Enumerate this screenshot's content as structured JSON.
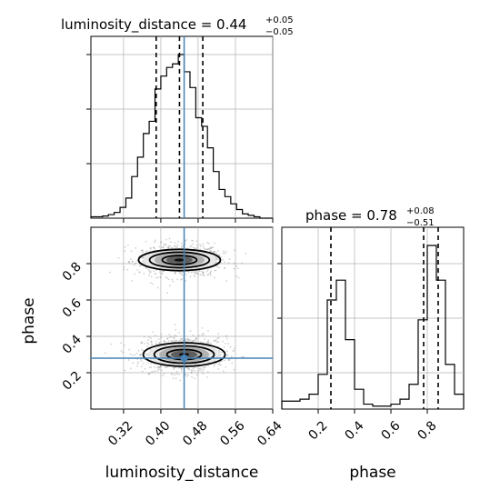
{
  "chart_data": {
    "type": "corner",
    "parameters": [
      "luminosity_distance",
      "phase"
    ],
    "truths": {
      "luminosity_distance": 0.45,
      "phase": 0.28
    },
    "grid": true,
    "panels": [
      {
        "id": "luminosity_distance-hist",
        "type": "histogram",
        "parameter": "luminosity_distance",
        "title_main": "luminosity_distance = 0.44",
        "title_sup": "+0.05",
        "title_sub": "−0.05",
        "xlim": [
          0.25,
          0.64
        ],
        "quantiles": [
          0.39,
          0.44,
          0.49
        ],
        "bins": [
          0.25,
          0.2625,
          0.275,
          0.2875,
          0.3,
          0.3125,
          0.325,
          0.3375,
          0.35,
          0.3625,
          0.375,
          0.3875,
          0.4,
          0.4125,
          0.425,
          0.4375,
          0.45,
          0.4625,
          0.475,
          0.4875,
          0.5,
          0.5125,
          0.525,
          0.5375,
          0.55,
          0.5625,
          0.575,
          0.5875,
          0.6,
          0.6125,
          0.625,
          0.6375,
          0.64
        ],
        "counts": [
          2,
          2,
          3,
          5,
          8,
          15,
          28,
          58,
          85,
          118,
          135,
          180,
          198,
          210,
          215,
          228,
          204,
          182,
          140,
          128,
          98,
          65,
          40,
          30,
          20,
          12,
          6,
          4,
          2,
          0,
          0,
          0
        ]
      },
      {
        "id": "phase-hist",
        "type": "histogram",
        "parameter": "phase",
        "title_main": "phase = 0.78",
        "title_sup": "+0.08",
        "title_sub": "−0.51",
        "xlim": [
          0.0,
          1.0
        ],
        "quantiles": [
          0.27,
          0.78,
          0.86
        ],
        "bins": [
          0.0,
          0.05,
          0.1,
          0.15,
          0.2,
          0.25,
          0.3,
          0.35,
          0.4,
          0.45,
          0.5,
          0.55,
          0.6,
          0.65,
          0.7,
          0.75,
          0.8,
          0.85,
          0.9,
          0.95,
          1.0
        ],
        "counts": [
          8,
          8,
          10,
          15,
          35,
          110,
          130,
          70,
          20,
          5,
          3,
          3,
          5,
          10,
          25,
          90,
          165,
          130,
          45,
          15
        ]
      },
      {
        "id": "2d-density",
        "type": "scatter-contour",
        "x_parameter": "luminosity_distance",
        "y_parameter": "phase",
        "xlim": [
          0.25,
          0.64
        ],
        "ylim": [
          0.0,
          1.0
        ],
        "modes": [
          {
            "x": 0.44,
            "y": 0.82,
            "sx": 0.045,
            "sy": 0.045,
            "weight": 0.5
          },
          {
            "x": 0.45,
            "y": 0.3,
            "sx": 0.045,
            "sy": 0.05,
            "weight": 0.5
          }
        ],
        "n_samples": 1800
      }
    ],
    "x_ticks": {
      "luminosity_distance": [
        "0.32",
        "0.40",
        "0.48",
        "0.56",
        "0.64"
      ],
      "phase": [
        "0.2",
        "0.4",
        "0.6",
        "0.8"
      ]
    },
    "y_ticks": {
      "phase": [
        "0.2",
        "0.4",
        "0.6",
        "0.8"
      ]
    },
    "xlabels": [
      "luminosity_distance",
      "phase"
    ],
    "ylabel": "phase",
    "colors": {
      "truth": "#4682b4",
      "hist": "#000000",
      "grid": "#b0b0b0",
      "points": "#9a9a9a"
    }
  }
}
